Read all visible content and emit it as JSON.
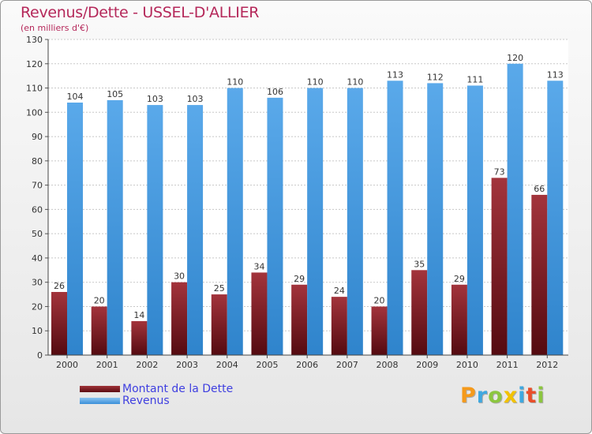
{
  "chart_data": {
    "type": "bar",
    "title": "Revenus/Dette - USSEL-D'ALLIER",
    "subtitle": "(en milliers d'€)",
    "categories": [
      "2000",
      "2001",
      "2002",
      "2003",
      "2004",
      "2005",
      "2006",
      "2007",
      "2008",
      "2009",
      "2010",
      "2011",
      "2012"
    ],
    "series": [
      {
        "name": "Montant de la Dette",
        "values": [
          26,
          20,
          14,
          30,
          25,
          34,
          29,
          24,
          20,
          35,
          29,
          73,
          66
        ],
        "color": "#7a1a1f"
      },
      {
        "name": "Revenus",
        "values": [
          104,
          105,
          103,
          103,
          110,
          106,
          110,
          110,
          113,
          112,
          111,
          120,
          113
        ],
        "color": "#4d9fe3"
      }
    ],
    "ylim": [
      0,
      130
    ],
    "ytick_step": 10,
    "grid": true,
    "legend_position": "bottom-left"
  },
  "logo": {
    "text": "Proxiti",
    "letters": [
      {
        "ch": "P",
        "color": "#f59a1b"
      },
      {
        "ch": "r",
        "color": "#3fa8e0"
      },
      {
        "ch": "o",
        "color": "#8cc63f"
      },
      {
        "ch": "x",
        "color": "#f2c200"
      },
      {
        "ch": "i",
        "color": "#3fa8e0"
      },
      {
        "ch": "t",
        "color": "#e94e2a"
      },
      {
        "ch": "i",
        "color": "#8cc63f"
      }
    ]
  }
}
